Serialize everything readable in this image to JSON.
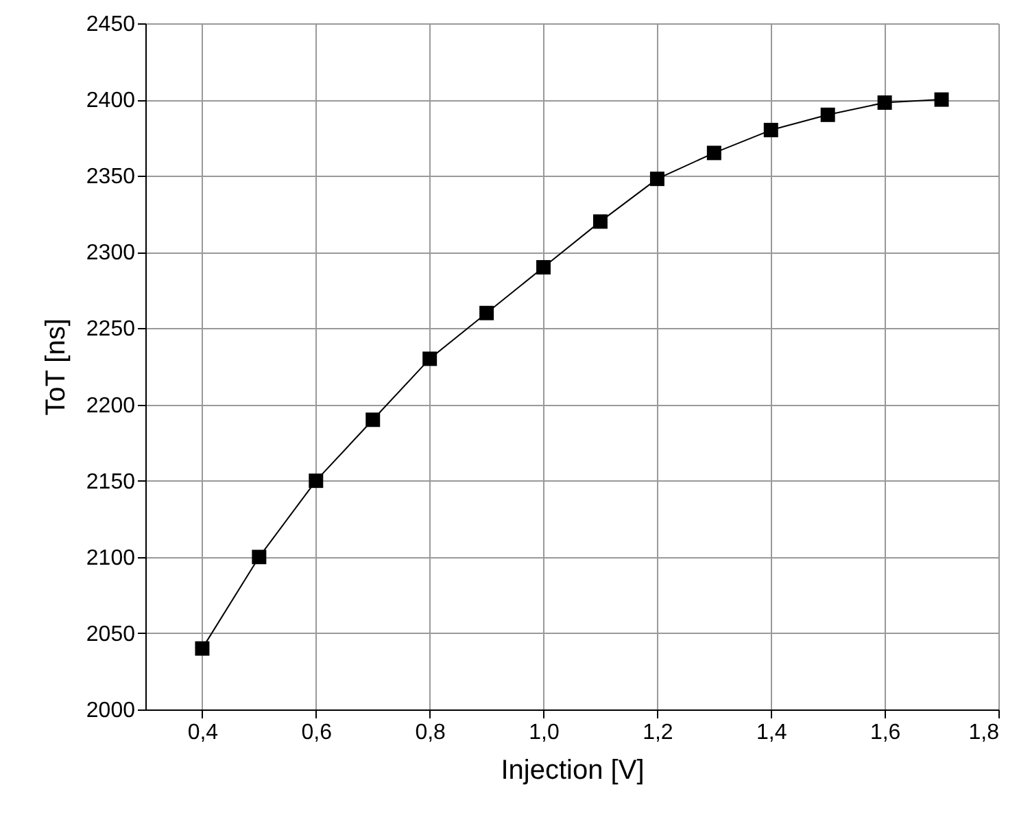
{
  "chart_data": {
    "type": "line",
    "xlabel": "Injection [V]",
    "ylabel": "ToT [ns]",
    "x": [
      0.4,
      0.5,
      0.6,
      0.7,
      0.8,
      0.9,
      1.0,
      1.1,
      1.2,
      1.3,
      1.4,
      1.5,
      1.6,
      1.7
    ],
    "series": [
      {
        "color": "#000000",
        "values": [
          2040,
          2100,
          2150,
          2190,
          2230,
          2260,
          2290,
          2320,
          2348,
          2365,
          2380,
          2390,
          2398,
          2400
        ]
      }
    ],
    "xlim": [
      0.3,
      1.8
    ],
    "xticks": [
      {
        "value": 0.4,
        "label": "0,4"
      },
      {
        "value": 0.6,
        "label": "0,6"
      },
      {
        "value": 0.8,
        "label": "0,8"
      },
      {
        "value": 1.0,
        "label": "1,0"
      },
      {
        "value": 1.2,
        "label": "1,2"
      },
      {
        "value": 1.4,
        "label": "1,4"
      },
      {
        "value": 1.6,
        "label": "1,6"
      },
      {
        "value": 1.8,
        "label": "1,8"
      }
    ],
    "ylim": [
      2000,
      2450
    ],
    "yticks": [
      2000,
      2050,
      2100,
      2150,
      2200,
      2250,
      2300,
      2350,
      2400,
      2450
    ],
    "grid": true,
    "marker": "square",
    "line_style": "solid"
  }
}
